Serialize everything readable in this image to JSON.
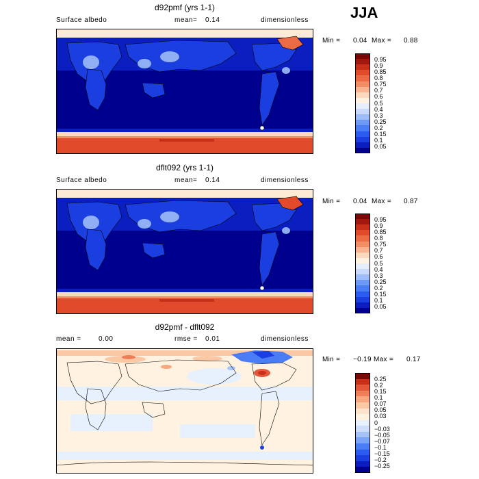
{
  "season": "JJA",
  "colors": {
    "abs_scale": [
      "#00008e",
      "#0b1fc0",
      "#1a3ee0",
      "#2b5cf0",
      "#4a7cf5",
      "#6e9af7",
      "#9dbcf8",
      "#c8d9fb",
      "#e6eefc",
      "#fff2e0",
      "#fcd8bd",
      "#f9b48f",
      "#f38d63",
      "#ec6a44",
      "#e14a2a",
      "#c8301a",
      "#a3180e",
      "#7a0806"
    ],
    "diff_scale": [
      "#00008e",
      "#0b1fc0",
      "#1a3ee0",
      "#2b5cf0",
      "#4a7cf5",
      "#7aa4f7",
      "#a6c3f9",
      "#cfdefc",
      "#e7f0fd",
      "#fff2e0",
      "#fde2cc",
      "#fbc8a5",
      "#f7a680",
      "#ef7f58",
      "#e3573a",
      "#c8301a",
      "#7a0806"
    ]
  },
  "panels": [
    {
      "id": "top",
      "title": "d92pmf (yrs 1-1)",
      "left_label": "Surface albedo",
      "mean_label": "mean=",
      "mean_value": "0.14",
      "units": "dimensionless",
      "min_label": "Min =",
      "min_value": "0.04",
      "max_label": "Max =",
      "max_value": "0.88",
      "levels": [
        "0.95",
        "0.9",
        "0.85",
        "0.8",
        "0.75",
        "0.7",
        "0.6",
        "0.5",
        "0.4",
        "0.3",
        "0.25",
        "0.2",
        "0.15",
        "0.1",
        "0.05"
      ]
    },
    {
      "id": "mid",
      "title": "dflt092 (yrs 1-1)",
      "left_label": "Surface albedo",
      "mean_label": "mean=",
      "mean_value": "0.14",
      "units": "dimensionless",
      "min_label": "Min =",
      "min_value": "0.04",
      "max_label": "Max =",
      "max_value": "0.87",
      "levels": [
        "0.95",
        "0.9",
        "0.85",
        "0.8",
        "0.75",
        "0.7",
        "0.6",
        "0.5",
        "0.4",
        "0.3",
        "0.25",
        "0.2",
        "0.15",
        "0.1",
        "0.05"
      ]
    },
    {
      "id": "diff",
      "title": "d92pmf - dflt092",
      "left_label": "mean =",
      "left_value": "0.00",
      "mean_label": "rmse =",
      "mean_value": "0.01",
      "units": "dimensionless",
      "min_label": "Min =",
      "min_value": "−0.19",
      "max_label": "Max =",
      "max_value": "0.17",
      "levels": [
        "0.25",
        "0.2",
        "0.15",
        "0.1",
        "0.07",
        "0.05",
        "0.03",
        "0",
        "−0.03",
        "−0.05",
        "−0.07",
        "−0.1",
        "−0.15",
        "−0.2",
        "−0.25"
      ]
    }
  ],
  "chart_data": {
    "type": "heatmap",
    "title": "JJA",
    "maps": [
      {
        "name": "d92pmf (yrs 1-1)",
        "variable": "Surface albedo",
        "mean": 0.14,
        "min": 0.04,
        "max": 0.88,
        "units": "dimensionless",
        "levels": [
          0.05,
          0.1,
          0.15,
          0.2,
          0.25,
          0.3,
          0.4,
          0.5,
          0.6,
          0.7,
          0.75,
          0.8,
          0.85,
          0.9,
          0.95
        ]
      },
      {
        "name": "dflt092 (yrs 1-1)",
        "variable": "Surface albedo",
        "mean": 0.14,
        "min": 0.04,
        "max": 0.87,
        "units": "dimensionless",
        "levels": [
          0.05,
          0.1,
          0.15,
          0.2,
          0.25,
          0.3,
          0.4,
          0.5,
          0.6,
          0.7,
          0.75,
          0.8,
          0.85,
          0.9,
          0.95
        ]
      },
      {
        "name": "d92pmf - dflt092",
        "mean": 0.0,
        "rmse": 0.01,
        "min": -0.19,
        "max": 0.17,
        "units": "dimensionless",
        "levels": [
          -0.25,
          -0.2,
          -0.15,
          -0.1,
          -0.07,
          -0.05,
          -0.03,
          0,
          0.03,
          0.05,
          0.07,
          0.1,
          0.15,
          0.2,
          0.25
        ]
      }
    ]
  }
}
